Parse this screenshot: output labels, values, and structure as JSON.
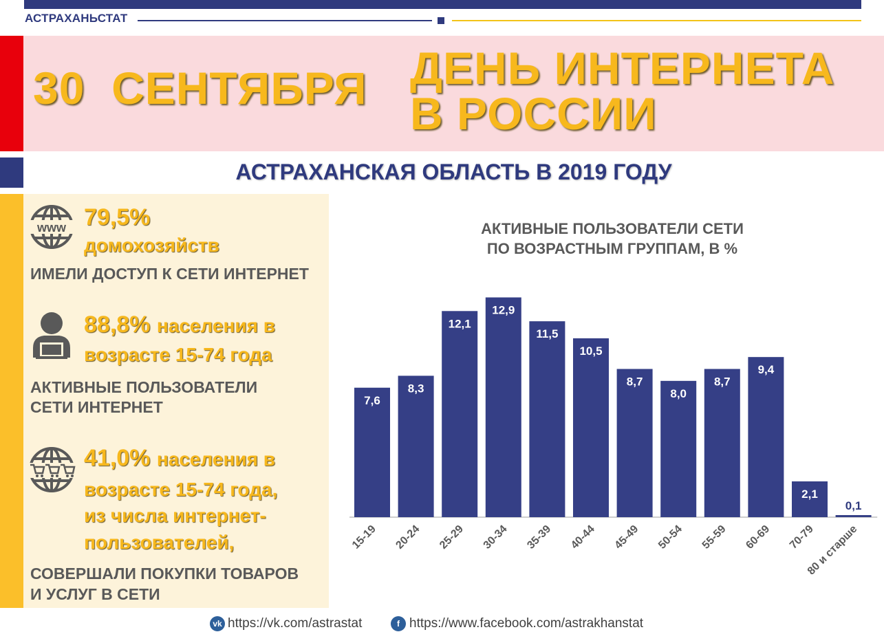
{
  "header": {
    "org_name": "АСТРАХАНЬСТАТ",
    "accent_colors": {
      "navy": "#2f3a7e",
      "gold": "#f7b81d",
      "red": "#e8000c",
      "yellow": "#fbbf2a",
      "banner_bg": "#fadadd",
      "panel_bg": "#fdf3da"
    }
  },
  "banner": {
    "date": "30  СЕНТЯБРЯ",
    "holiday_line1": "ДЕНЬ ИНТЕРНЕТА",
    "holiday_line2": "В РОССИИ"
  },
  "subtitle": "АСТРАХАНСКАЯ ОБЛАСТЬ В 2019 ГОДУ",
  "stats": [
    {
      "icon": "www-globe-icon",
      "value": "79,5%",
      "line1": "домохозяйств",
      "caption": "ИМЕЛИ ДОСТУП К СЕТИ ИНТЕРНЕТ"
    },
    {
      "icon": "user-laptop-icon",
      "value": "88,8%",
      "line1": "населения в",
      "line2": "возрасте 15-74 года",
      "caption_line1": "АКТИВНЫЕ ПОЛЬЗОВАТЕЛИ",
      "caption_line2": "СЕТИ ИНТЕРНЕТ"
    },
    {
      "icon": "globe-shopping-cart-icon",
      "value": "41,0%",
      "line1": "населения в",
      "line2": "возрасте 15-74 года,",
      "line3": "из числа интернет-",
      "line4": "пользователей,",
      "caption_line1": "СОВЕРШАЛИ ПОКУПКИ ТОВАРОВ",
      "caption_line2": "И УСЛУГ В СЕТИ"
    }
  ],
  "chart_data": {
    "type": "bar",
    "title_line1": "АКТИВНЫЕ ПОЛЬЗОВАТЕЛИ СЕТИ",
    "title_line2": "ПО ВОЗРАСТНЫМ ГРУППАМ, В %",
    "categories": [
      "15-19",
      "20-24",
      "25-29",
      "30-34",
      "35-39",
      "40-44",
      "45-49",
      "50-54",
      "55-59",
      "60-69",
      "70-79",
      "80 и старше"
    ],
    "values": [
      7.6,
      8.3,
      12.1,
      12.9,
      11.5,
      10.5,
      8.7,
      8.0,
      8.7,
      9.4,
      2.1,
      0.1
    ],
    "labels": [
      "7,6",
      "8,3",
      "12,1",
      "12,9",
      "11,5",
      "10,5",
      "8,7",
      "8,0",
      "8,7",
      "9,4",
      "2,1",
      "0,1"
    ],
    "bar_color": "#353f86",
    "ylim": [
      0,
      13
    ],
    "grid": false,
    "legend": "none"
  },
  "footer": {
    "vk_icon": "vk-icon",
    "vk_url": "https://vk.com/astrastat",
    "fb_icon": "facebook-icon",
    "fb_url": "https://www.facebook.com/astrakhanstat"
  }
}
